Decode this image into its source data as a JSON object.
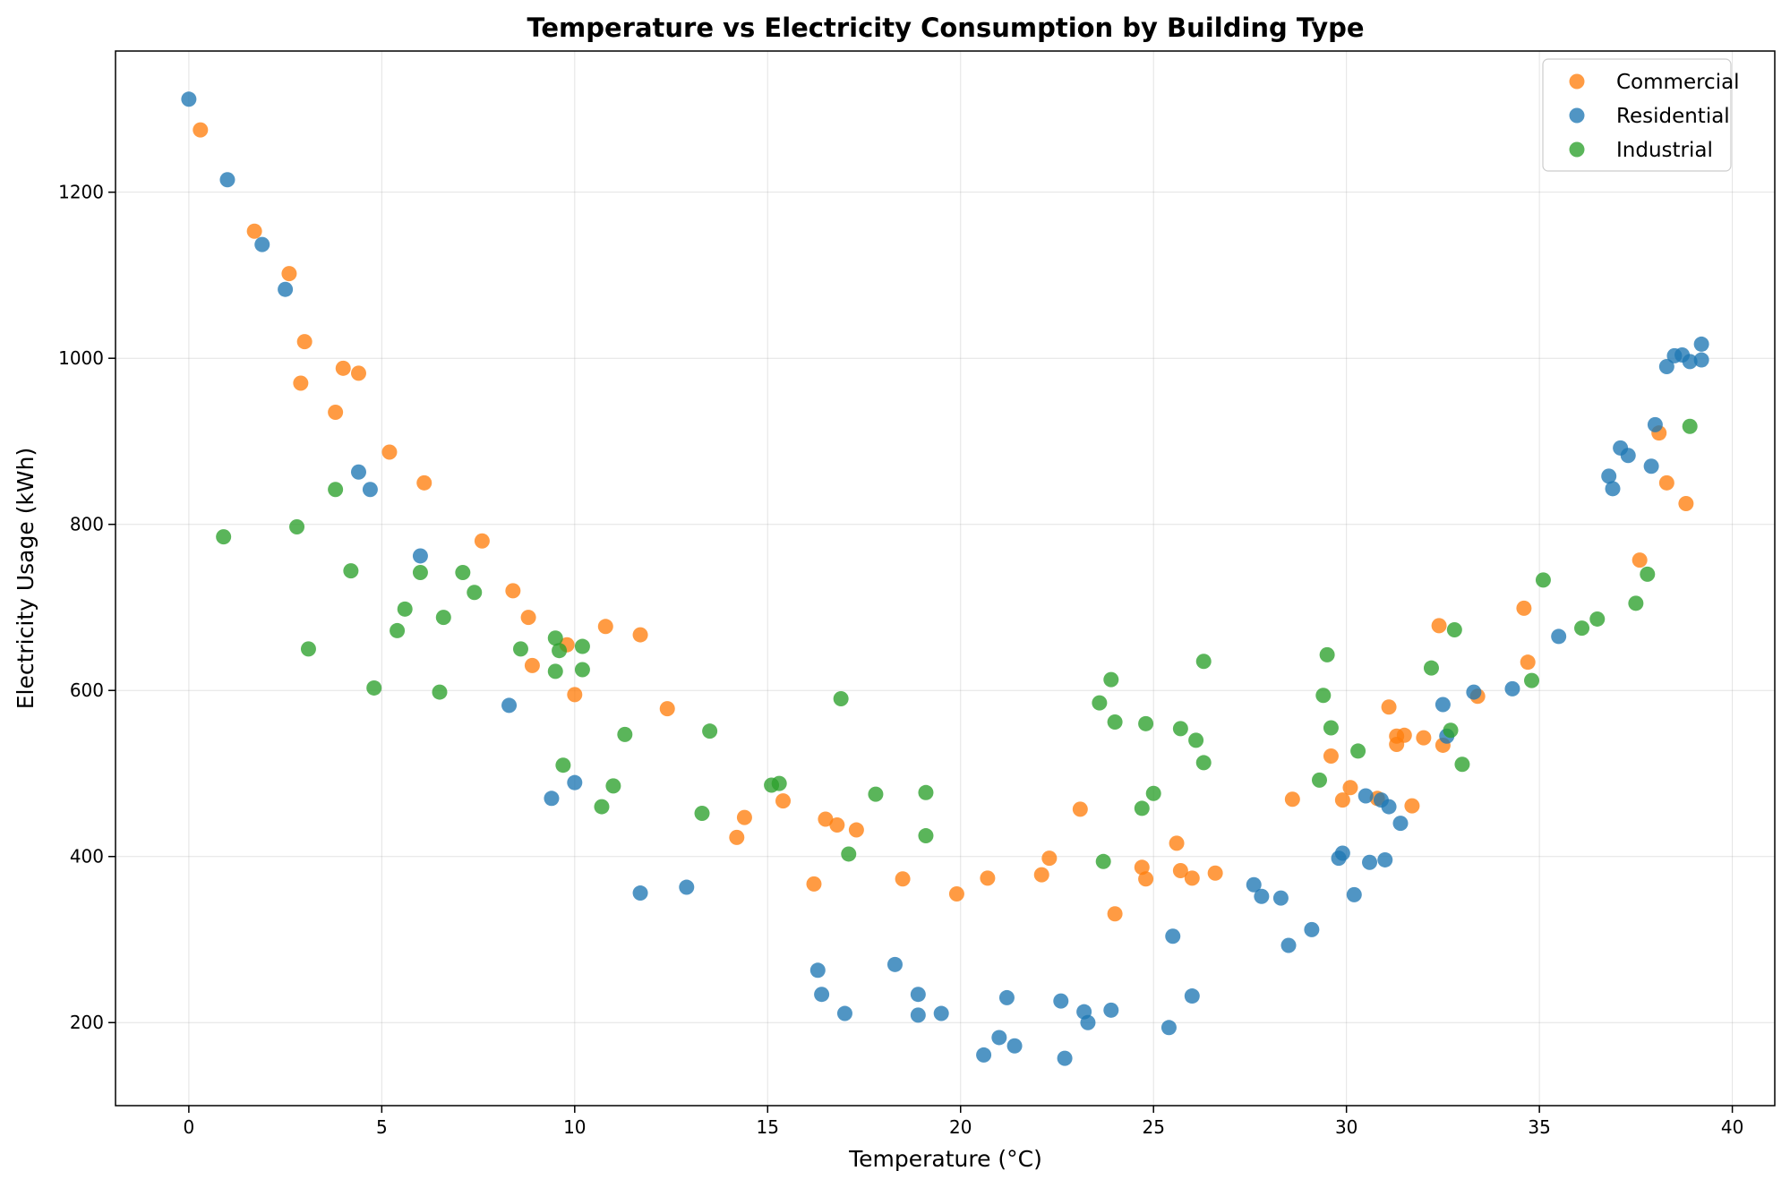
{
  "chart_data": {
    "type": "scatter",
    "title": "Temperature vs Electricity Consumption by Building Type",
    "xlabel": "Temperature (°C)",
    "ylabel": "Electricity Usage (kWh)",
    "xlim": [
      -1.9,
      41.1
    ],
    "ylim": [
      100,
      1370
    ],
    "xticks": [
      0,
      5,
      10,
      15,
      20,
      25,
      30,
      35,
      40
    ],
    "yticks": [
      200,
      400,
      600,
      800,
      1000,
      1200
    ],
    "grid": true,
    "legend_position": "top-right",
    "series": [
      {
        "name": "Commercial",
        "color": "#ff7f0e",
        "points": [
          [
            0.3,
            1275
          ],
          [
            1.7,
            1153
          ],
          [
            2.6,
            1102
          ],
          [
            3.0,
            1020
          ],
          [
            2.9,
            970
          ],
          [
            4.0,
            988
          ],
          [
            4.4,
            982
          ],
          [
            3.8,
            935
          ],
          [
            5.2,
            887
          ],
          [
            6.1,
            850
          ],
          [
            7.6,
            780
          ],
          [
            8.4,
            720
          ],
          [
            8.8,
            688
          ],
          [
            8.9,
            630
          ],
          [
            9.8,
            655
          ],
          [
            10.0,
            595
          ],
          [
            10.8,
            677
          ],
          [
            11.7,
            667
          ],
          [
            12.4,
            578
          ],
          [
            14.2,
            423
          ],
          [
            14.4,
            447
          ],
          [
            15.4,
            467
          ],
          [
            16.2,
            367
          ],
          [
            16.5,
            445
          ],
          [
            16.8,
            438
          ],
          [
            17.3,
            432
          ],
          [
            18.5,
            373
          ],
          [
            19.9,
            355
          ],
          [
            20.7,
            374
          ],
          [
            22.1,
            378
          ],
          [
            22.3,
            398
          ],
          [
            23.1,
            457
          ],
          [
            24.0,
            331
          ],
          [
            24.7,
            387
          ],
          [
            24.8,
            373
          ],
          [
            25.6,
            416
          ],
          [
            25.7,
            383
          ],
          [
            26.0,
            374
          ],
          [
            26.6,
            380
          ],
          [
            28.6,
            469
          ],
          [
            29.6,
            521
          ],
          [
            29.9,
            468
          ],
          [
            30.1,
            483
          ],
          [
            30.8,
            470
          ],
          [
            31.1,
            580
          ],
          [
            31.3,
            545
          ],
          [
            31.3,
            535
          ],
          [
            31.5,
            546
          ],
          [
            31.7,
            461
          ],
          [
            32.0,
            543
          ],
          [
            32.4,
            678
          ],
          [
            32.5,
            534
          ],
          [
            33.4,
            593
          ],
          [
            34.6,
            699
          ],
          [
            34.7,
            634
          ],
          [
            37.6,
            757
          ],
          [
            38.1,
            910
          ],
          [
            38.3,
            850
          ],
          [
            38.8,
            825
          ]
        ]
      },
      {
        "name": "Residential",
        "color": "#1f77b4",
        "points": [
          [
            0.0,
            1312
          ],
          [
            1.0,
            1215
          ],
          [
            1.9,
            1137
          ],
          [
            2.5,
            1083
          ],
          [
            4.4,
            863
          ],
          [
            4.7,
            842
          ],
          [
            6.0,
            762
          ],
          [
            8.3,
            582
          ],
          [
            9.4,
            470
          ],
          [
            10.0,
            489
          ],
          [
            11.7,
            356
          ],
          [
            12.9,
            363
          ],
          [
            16.3,
            263
          ],
          [
            16.4,
            234
          ],
          [
            17.0,
            211
          ],
          [
            18.3,
            270
          ],
          [
            18.9,
            234
          ],
          [
            18.9,
            209
          ],
          [
            19.5,
            211
          ],
          [
            20.6,
            161
          ],
          [
            21.0,
            182
          ],
          [
            21.2,
            230
          ],
          [
            21.4,
            172
          ],
          [
            22.6,
            226
          ],
          [
            22.7,
            157
          ],
          [
            23.2,
            213
          ],
          [
            23.3,
            200
          ],
          [
            23.9,
            215
          ],
          [
            25.5,
            304
          ],
          [
            25.4,
            194
          ],
          [
            26.0,
            232
          ],
          [
            27.6,
            366
          ],
          [
            27.8,
            352
          ],
          [
            28.3,
            350
          ],
          [
            28.5,
            293
          ],
          [
            29.1,
            312
          ],
          [
            29.8,
            398
          ],
          [
            29.9,
            404
          ],
          [
            30.2,
            354
          ],
          [
            30.5,
            473
          ],
          [
            30.6,
            393
          ],
          [
            30.9,
            468
          ],
          [
            31.0,
            396
          ],
          [
            31.1,
            460
          ],
          [
            31.4,
            440
          ],
          [
            32.5,
            583
          ],
          [
            32.6,
            545
          ],
          [
            33.3,
            598
          ],
          [
            34.3,
            602
          ],
          [
            35.5,
            665
          ],
          [
            36.8,
            858
          ],
          [
            36.9,
            843
          ],
          [
            37.1,
            892
          ],
          [
            37.3,
            883
          ],
          [
            37.9,
            870
          ],
          [
            38.0,
            920
          ],
          [
            38.3,
            990
          ],
          [
            38.5,
            1003
          ],
          [
            38.7,
            1004
          ],
          [
            38.9,
            996
          ],
          [
            39.2,
            1017
          ],
          [
            39.2,
            998
          ]
        ]
      },
      {
        "name": "Industrial",
        "color": "#2ca02c",
        "points": [
          [
            0.9,
            785
          ],
          [
            2.8,
            797
          ],
          [
            3.1,
            650
          ],
          [
            3.8,
            842
          ],
          [
            4.2,
            744
          ],
          [
            4.8,
            603
          ],
          [
            5.4,
            672
          ],
          [
            5.6,
            698
          ],
          [
            6.0,
            742
          ],
          [
            6.5,
            598
          ],
          [
            6.6,
            688
          ],
          [
            7.1,
            742
          ],
          [
            7.4,
            718
          ],
          [
            8.6,
            650
          ],
          [
            9.5,
            623
          ],
          [
            9.5,
            663
          ],
          [
            9.6,
            648
          ],
          [
            9.7,
            510
          ],
          [
            10.2,
            653
          ],
          [
            10.2,
            625
          ],
          [
            10.7,
            460
          ],
          [
            11.0,
            485
          ],
          [
            11.3,
            547
          ],
          [
            13.3,
            452
          ],
          [
            13.5,
            551
          ],
          [
            15.1,
            486
          ],
          [
            15.3,
            488
          ],
          [
            16.9,
            590
          ],
          [
            17.1,
            403
          ],
          [
            17.8,
            475
          ],
          [
            19.1,
            425
          ],
          [
            19.1,
            477
          ],
          [
            23.6,
            585
          ],
          [
            23.7,
            394
          ],
          [
            23.9,
            613
          ],
          [
            24.0,
            562
          ],
          [
            24.8,
            560
          ],
          [
            24.7,
            458
          ],
          [
            25.0,
            476
          ],
          [
            25.7,
            554
          ],
          [
            26.1,
            540
          ],
          [
            26.3,
            635
          ],
          [
            26.3,
            513
          ],
          [
            29.3,
            492
          ],
          [
            29.4,
            594
          ],
          [
            29.5,
            643
          ],
          [
            29.6,
            555
          ],
          [
            30.3,
            527
          ],
          [
            32.2,
            627
          ],
          [
            32.7,
            552
          ],
          [
            32.8,
            673
          ],
          [
            33.0,
            511
          ],
          [
            34.8,
            612
          ],
          [
            35.1,
            733
          ],
          [
            36.1,
            675
          ],
          [
            36.5,
            686
          ],
          [
            37.5,
            705
          ],
          [
            37.8,
            740
          ],
          [
            38.9,
            918
          ]
        ]
      }
    ]
  }
}
